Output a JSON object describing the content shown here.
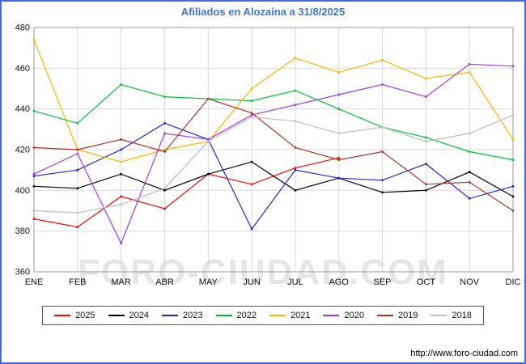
{
  "title": "Afiliados en Alozaina a 31/8/2025",
  "watermark": "FORO-CIUDAD.COM",
  "footer_url": "http://www.foro-ciudad.com",
  "colors": {
    "border": "#4169e1",
    "title": "#4472d8",
    "grid": "#d9d9d9",
    "axis": "#999999",
    "watermark": "#e6e6e6"
  },
  "chart_data": {
    "type": "line",
    "title": "Afiliados en Alozaina a 31/8/2025",
    "xlabel": "",
    "ylabel": "",
    "categories": [
      "ENE",
      "FEB",
      "MAR",
      "ABR",
      "MAY",
      "JUN",
      "JUL",
      "AGO",
      "SEP",
      "OCT",
      "NOV",
      "DIC"
    ],
    "ylim": [
      360,
      480
    ],
    "yticks": [
      360,
      380,
      400,
      420,
      440,
      460,
      480
    ],
    "grid": true,
    "legend_position": "bottom",
    "series": [
      {
        "name": "2025",
        "color": "#ff0000",
        "values": [
          386,
          382,
          397,
          391,
          408,
          403,
          411,
          416,
          null,
          null,
          null,
          null
        ]
      },
      {
        "name": "2024",
        "color": "#000000",
        "values": [
          402,
          401,
          408,
          400,
          408,
          414,
          400,
          406,
          399,
          400,
          409,
          397
        ]
      },
      {
        "name": "2023",
        "color": "#2323cd",
        "values": [
          407,
          410,
          420,
          433,
          425,
          381,
          410,
          406,
          405,
          413,
          396,
          402
        ]
      },
      {
        "name": "2022",
        "color": "#00c33a",
        "values": [
          439,
          433,
          452,
          446,
          445,
          444,
          449,
          440,
          431,
          426,
          419,
          415
        ]
      },
      {
        "name": "2021",
        "color": "#ffb400",
        "values": [
          474,
          420,
          414,
          420,
          424,
          450,
          465,
          458,
          464,
          455,
          458,
          425
        ]
      },
      {
        "name": "2020",
        "color": "#9d3be8",
        "values": [
          408,
          418,
          374,
          428,
          425,
          437,
          442,
          447,
          452,
          446,
          462,
          461
        ]
      },
      {
        "name": "2019",
        "color": "#a93226",
        "values": [
          421,
          420,
          425,
          419,
          445,
          438,
          421,
          415,
          419,
          403,
          404,
          390
        ]
      },
      {
        "name": "2018",
        "color": "#bdbdbd",
        "values": [
          390,
          389,
          393,
          401,
          424,
          436,
          434,
          428,
          431,
          424,
          428,
          437
        ]
      }
    ]
  }
}
